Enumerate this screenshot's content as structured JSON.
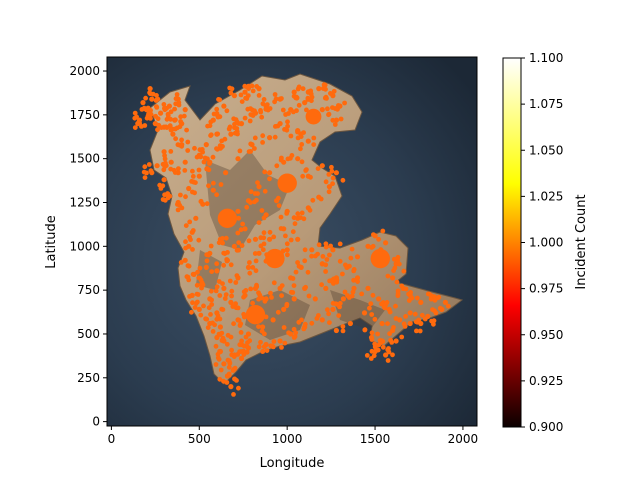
{
  "chart_data": {
    "type": "scatter",
    "title": "",
    "xlabel": "Longitude",
    "ylabel": "Latitude",
    "xlim": [
      -25,
      2080
    ],
    "ylim": [
      -25,
      2080
    ],
    "xticks": [
      0,
      500,
      1000,
      1500,
      2000
    ],
    "yticks": [
      0,
      250,
      500,
      750,
      1000,
      1250,
      1500,
      1750,
      2000
    ],
    "x_tick_labels": [
      "0",
      "500",
      "1000",
      "1500",
      "2000"
    ],
    "y_tick_labels": [
      "0",
      "250",
      "500",
      "750",
      "1000",
      "1250",
      "1500",
      "1750",
      "2000"
    ],
    "background": "terrain map of an island (ocean dark slate blue, land tan/beige with dark shaded relief)",
    "grid": false,
    "marker_color": "#ff6a0d",
    "colorbar": {
      "label": "Incident Count",
      "colormap": "hot",
      "range": [
        0.9,
        1.1
      ],
      "ticks": [
        0.9,
        0.925,
        0.95,
        0.975,
        1.0,
        1.025,
        1.05,
        1.075,
        1.1
      ],
      "tick_labels": [
        "0.900",
        "0.925",
        "0.950",
        "0.975",
        "1.000",
        "1.025",
        "1.050",
        "1.075",
        "1.100"
      ]
    },
    "dense_clusters": [
      {
        "x": 1000,
        "y": 1360,
        "r": 55
      },
      {
        "x": 660,
        "y": 1160,
        "r": 55
      },
      {
        "x": 930,
        "y": 930,
        "r": 55
      },
      {
        "x": 1530,
        "y": 930,
        "r": 55
      },
      {
        "x": 820,
        "y": 610,
        "r": 55
      },
      {
        "x": 1150,
        "y": 1740,
        "r": 45
      }
    ],
    "sample_points": [
      [
        160,
        1720
      ],
      [
        200,
        1780
      ],
      [
        230,
        1840
      ],
      [
        280,
        1760
      ],
      [
        330,
        1800
      ],
      [
        380,
        1840
      ],
      [
        250,
        1700
      ],
      [
        300,
        1680
      ],
      [
        350,
        1640
      ],
      [
        400,
        1580
      ],
      [
        420,
        1480
      ],
      [
        380,
        1420
      ],
      [
        300,
        1380
      ],
      [
        260,
        1460
      ],
      [
        230,
        1420
      ],
      [
        320,
        1300
      ],
      [
        380,
        1250
      ],
      [
        440,
        1330
      ],
      [
        500,
        1400
      ],
      [
        560,
        1480
      ],
      [
        620,
        1560
      ],
      [
        680,
        1640
      ],
      [
        740,
        1700
      ],
      [
        820,
        1760
      ],
      [
        880,
        1800
      ],
      [
        960,
        1840
      ],
      [
        1020,
        1780
      ],
      [
        1100,
        1820
      ],
      [
        1200,
        1780
      ],
      [
        1280,
        1720
      ],
      [
        1060,
        1660
      ],
      [
        1120,
        1600
      ],
      [
        900,
        1620
      ],
      [
        800,
        1580
      ],
      [
        720,
        1500
      ],
      [
        650,
        1420
      ],
      [
        580,
        1320
      ],
      [
        520,
        1240
      ],
      [
        480,
        1160
      ],
      [
        460,
        1080
      ],
      [
        440,
        1000
      ],
      [
        420,
        920
      ],
      [
        470,
        840
      ],
      [
        520,
        780
      ],
      [
        560,
        700
      ],
      [
        600,
        620
      ],
      [
        620,
        540
      ],
      [
        640,
        460
      ],
      [
        620,
        400
      ],
      [
        640,
        330
      ],
      [
        660,
        260
      ],
      [
        700,
        380
      ],
      [
        740,
        440
      ],
      [
        780,
        500
      ],
      [
        860,
        540
      ],
      [
        920,
        580
      ],
      [
        980,
        640
      ],
      [
        1040,
        700
      ],
      [
        1100,
        760
      ],
      [
        1160,
        700
      ],
      [
        1220,
        760
      ],
      [
        1280,
        820
      ],
      [
        1340,
        880
      ],
      [
        1400,
        940
      ],
      [
        1460,
        1000
      ],
      [
        1400,
        820
      ],
      [
        1460,
        760
      ],
      [
        1520,
        700
      ],
      [
        1580,
        640
      ],
      [
        1640,
        580
      ],
      [
        1700,
        620
      ],
      [
        1760,
        680
      ],
      [
        1820,
        700
      ],
      [
        1880,
        640
      ],
      [
        1700,
        560
      ],
      [
        1600,
        520
      ],
      [
        1540,
        460
      ],
      [
        1480,
        480
      ],
      [
        1380,
        760
      ],
      [
        1320,
        700
      ],
      [
        1260,
        640
      ],
      [
        1200,
        580
      ],
      [
        1100,
        540
      ],
      [
        1020,
        500
      ],
      [
        960,
        460
      ],
      [
        880,
        440
      ],
      [
        780,
        420
      ],
      [
        720,
        580
      ],
      [
        680,
        680
      ],
      [
        640,
        760
      ],
      [
        720,
        820
      ],
      [
        780,
        880
      ],
      [
        840,
        960
      ],
      [
        900,
        1040
      ],
      [
        980,
        1100
      ],
      [
        1060,
        1160
      ],
      [
        1120,
        1220
      ],
      [
        1180,
        1280
      ],
      [
        1240,
        1340
      ],
      [
        1280,
        1420
      ],
      [
        1200,
        1460
      ],
      [
        1120,
        1400
      ],
      [
        1060,
        1500
      ],
      [
        980,
        1480
      ],
      [
        900,
        1420
      ],
      [
        840,
        1340
      ],
      [
        780,
        1260
      ],
      [
        720,
        1200
      ],
      [
        760,
        1100
      ],
      [
        820,
        1040
      ],
      [
        880,
        1180
      ],
      [
        940,
        1260
      ],
      [
        1000,
        1200
      ],
      [
        1060,
        1040
      ],
      [
        1000,
        980
      ],
      [
        1140,
        980
      ],
      [
        1200,
        900
      ],
      [
        1260,
        980
      ],
      [
        1080,
        880
      ],
      [
        1020,
        820
      ],
      [
        960,
        760
      ],
      [
        880,
        700
      ],
      [
        820,
        760
      ],
      [
        760,
        720
      ],
      [
        700,
        1000
      ],
      [
        620,
        1040
      ],
      [
        560,
        960
      ],
      [
        540,
        880
      ],
      [
        600,
        860
      ],
      [
        660,
        920
      ],
      [
        1120,
        1880
      ],
      [
        1180,
        1900
      ],
      [
        1260,
        1860
      ],
      [
        1300,
        1800
      ],
      [
        1040,
        1880
      ],
      [
        960,
        1700
      ],
      [
        640,
        1800
      ],
      [
        700,
        1860
      ],
      [
        760,
        1880
      ],
      [
        580,
        1720
      ],
      [
        840,
        1900
      ],
      [
        1600,
        820
      ],
      [
        1560,
        1020
      ],
      [
        1500,
        1060
      ],
      [
        1620,
        900
      ],
      [
        1660,
        760
      ],
      [
        1540,
        560
      ],
      [
        1440,
        620
      ],
      [
        1360,
        560
      ],
      [
        1280,
        520
      ],
      [
        400,
        1700
      ],
      [
        420,
        1780
      ],
      [
        360,
        1720
      ],
      [
        180,
        1820
      ],
      [
        220,
        1900
      ],
      [
        150,
        1700
      ],
      [
        540,
        1580
      ],
      [
        600,
        1640
      ],
      [
        500,
        1520
      ],
      [
        300,
        1540
      ],
      [
        340,
        1480
      ],
      [
        700,
        300
      ],
      [
        740,
        360
      ],
      [
        680,
        200
      ],
      [
        600,
        480
      ],
      [
        560,
        560
      ],
      [
        500,
        640
      ],
      [
        460,
        720
      ],
      [
        1700,
        720
      ],
      [
        1800,
        600
      ],
      [
        1900,
        680
      ],
      [
        1760,
        560
      ],
      [
        1500,
        400
      ],
      [
        1560,
        380
      ],
      [
        1620,
        460
      ]
    ]
  }
}
